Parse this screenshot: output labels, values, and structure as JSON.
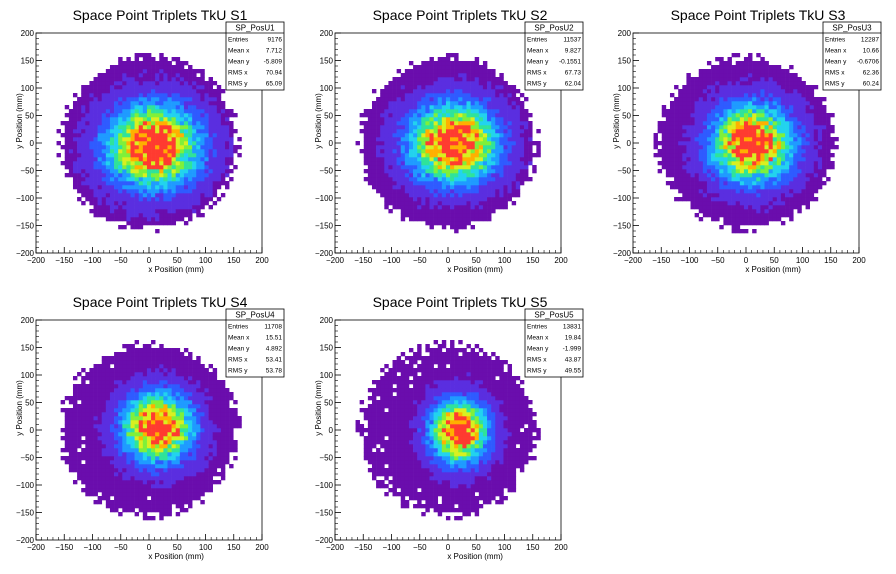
{
  "palette": [
    "#6a0dad",
    "#5a2ee0",
    "#2f5bff",
    "#1f9bff",
    "#22d3ee",
    "#2fe39a",
    "#7ff03a",
    "#d8f020",
    "#ffb000",
    "#ff3b30"
  ],
  "chart_data": [
    {
      "type": "heatmap",
      "title": "Space Point Triplets TkU S1",
      "xlabel": "x Position (mm)",
      "ylabel": "y Position (mm)",
      "xlim": [
        -200,
        200
      ],
      "ylim": [
        -200,
        200
      ],
      "xticks": [
        "−200",
        "−150",
        "−100",
        "−50",
        "0",
        "50",
        "100",
        "150",
        "200"
      ],
      "yticks": [
        "200",
        "150",
        "100",
        "50",
        "0",
        "−50",
        "−100",
        "−150",
        "−200"
      ],
      "stats": {
        "name": "SP_PosU1",
        "rows": [
          {
            "label": "Entries",
            "value": "9176"
          },
          {
            "label": "Mean x",
            "value": "7.712"
          },
          {
            "label": "Mean y",
            "value": "-5.809"
          },
          {
            "label": "RMS x",
            "value": "70.94"
          },
          {
            "label": "RMS y",
            "value": "65.09"
          }
        ]
      },
      "distribution": {
        "mean_x": 7.712,
        "mean_y": -5.809,
        "rms_x": 70.94,
        "rms_y": 65.09,
        "radius": 150
      }
    },
    {
      "type": "heatmap",
      "title": "Space Point Triplets TkU S2",
      "xlabel": "x Position (mm)",
      "ylabel": "y Position (mm)",
      "xlim": [
        -200,
        200
      ],
      "ylim": [
        -200,
        200
      ],
      "xticks": [
        "−200",
        "−150",
        "−100",
        "−50",
        "0",
        "50",
        "100",
        "150",
        "200"
      ],
      "yticks": [
        "200",
        "150",
        "100",
        "50",
        "0",
        "−50",
        "−100",
        "−150",
        "−200"
      ],
      "stats": {
        "name": "SP_PosU2",
        "rows": [
          {
            "label": "Entries",
            "value": "11537"
          },
          {
            "label": "Mean x",
            "value": "9.827"
          },
          {
            "label": "Mean y",
            "value": "-0.1551"
          },
          {
            "label": "RMS x",
            "value": "67.73"
          },
          {
            "label": "RMS y",
            "value": "62.04"
          }
        ]
      },
      "distribution": {
        "mean_x": 9.827,
        "mean_y": -0.1551,
        "rms_x": 67.73,
        "rms_y": 62.04,
        "radius": 150
      }
    },
    {
      "type": "heatmap",
      "title": "Space Point Triplets TkU S3",
      "xlabel": "x Position (mm)",
      "ylabel": "y Position (mm)",
      "xlim": [
        -200,
        200
      ],
      "ylim": [
        -200,
        200
      ],
      "xticks": [
        "−200",
        "−150",
        "−100",
        "−50",
        "0",
        "50",
        "100",
        "150",
        "200"
      ],
      "yticks": [
        "200",
        "150",
        "100",
        "50",
        "0",
        "−50",
        "−100",
        "−150",
        "−200"
      ],
      "stats": {
        "name": "SP_PosU3",
        "rows": [
          {
            "label": "Entries",
            "value": "12287"
          },
          {
            "label": "Mean x",
            "value": "10.66"
          },
          {
            "label": "Mean y",
            "value": "-0.6706"
          },
          {
            "label": "RMS x",
            "value": "62.36"
          },
          {
            "label": "RMS y",
            "value": "60.24"
          }
        ]
      },
      "distribution": {
        "mean_x": 10.66,
        "mean_y": -0.6706,
        "rms_x": 62.36,
        "rms_y": 60.24,
        "radius": 150
      }
    },
    {
      "type": "heatmap",
      "title": "Space Point Triplets TkU S4",
      "xlabel": "x Position (mm)",
      "ylabel": "y Position (mm)",
      "xlim": [
        -200,
        200
      ],
      "ylim": [
        -200,
        200
      ],
      "xticks": [
        "−200",
        "−150",
        "−100",
        "−50",
        "0",
        "50",
        "100",
        "150",
        "200"
      ],
      "yticks": [
        "200",
        "150",
        "100",
        "50",
        "0",
        "−50",
        "−100",
        "−150",
        "−200"
      ],
      "stats": {
        "name": "SP_PosU4",
        "rows": [
          {
            "label": "Entries",
            "value": "11708"
          },
          {
            "label": "Mean x",
            "value": "15.51"
          },
          {
            "label": "Mean y",
            "value": "4.892"
          },
          {
            "label": "RMS x",
            "value": "53.41"
          },
          {
            "label": "RMS y",
            "value": "53.78"
          }
        ]
      },
      "distribution": {
        "mean_x": 15.51,
        "mean_y": 4.892,
        "rms_x": 53.41,
        "rms_y": 53.78,
        "radius": 150
      }
    },
    {
      "type": "heatmap",
      "title": "Space Point Triplets TkU S5",
      "xlabel": "x Position (mm)",
      "ylabel": "y Position (mm)",
      "xlim": [
        -200,
        200
      ],
      "ylim": [
        -200,
        200
      ],
      "xticks": [
        "−200",
        "−150",
        "−100",
        "−50",
        "0",
        "50",
        "100",
        "150",
        "200"
      ],
      "yticks": [
        "200",
        "150",
        "100",
        "50",
        "0",
        "−50",
        "−100",
        "−150",
        "−200"
      ],
      "stats": {
        "name": "SP_PosU5",
        "rows": [
          {
            "label": "Entries",
            "value": "13831"
          },
          {
            "label": "Mean x",
            "value": "19.84"
          },
          {
            "label": "Mean y",
            "value": "-1.999"
          },
          {
            "label": "RMS x",
            "value": "43.87"
          },
          {
            "label": "RMS y",
            "value": "49.55"
          }
        ]
      },
      "distribution": {
        "mean_x": 19.84,
        "mean_y": -1.999,
        "rms_x": 43.87,
        "rms_y": 49.55,
        "radius": 150
      }
    }
  ]
}
